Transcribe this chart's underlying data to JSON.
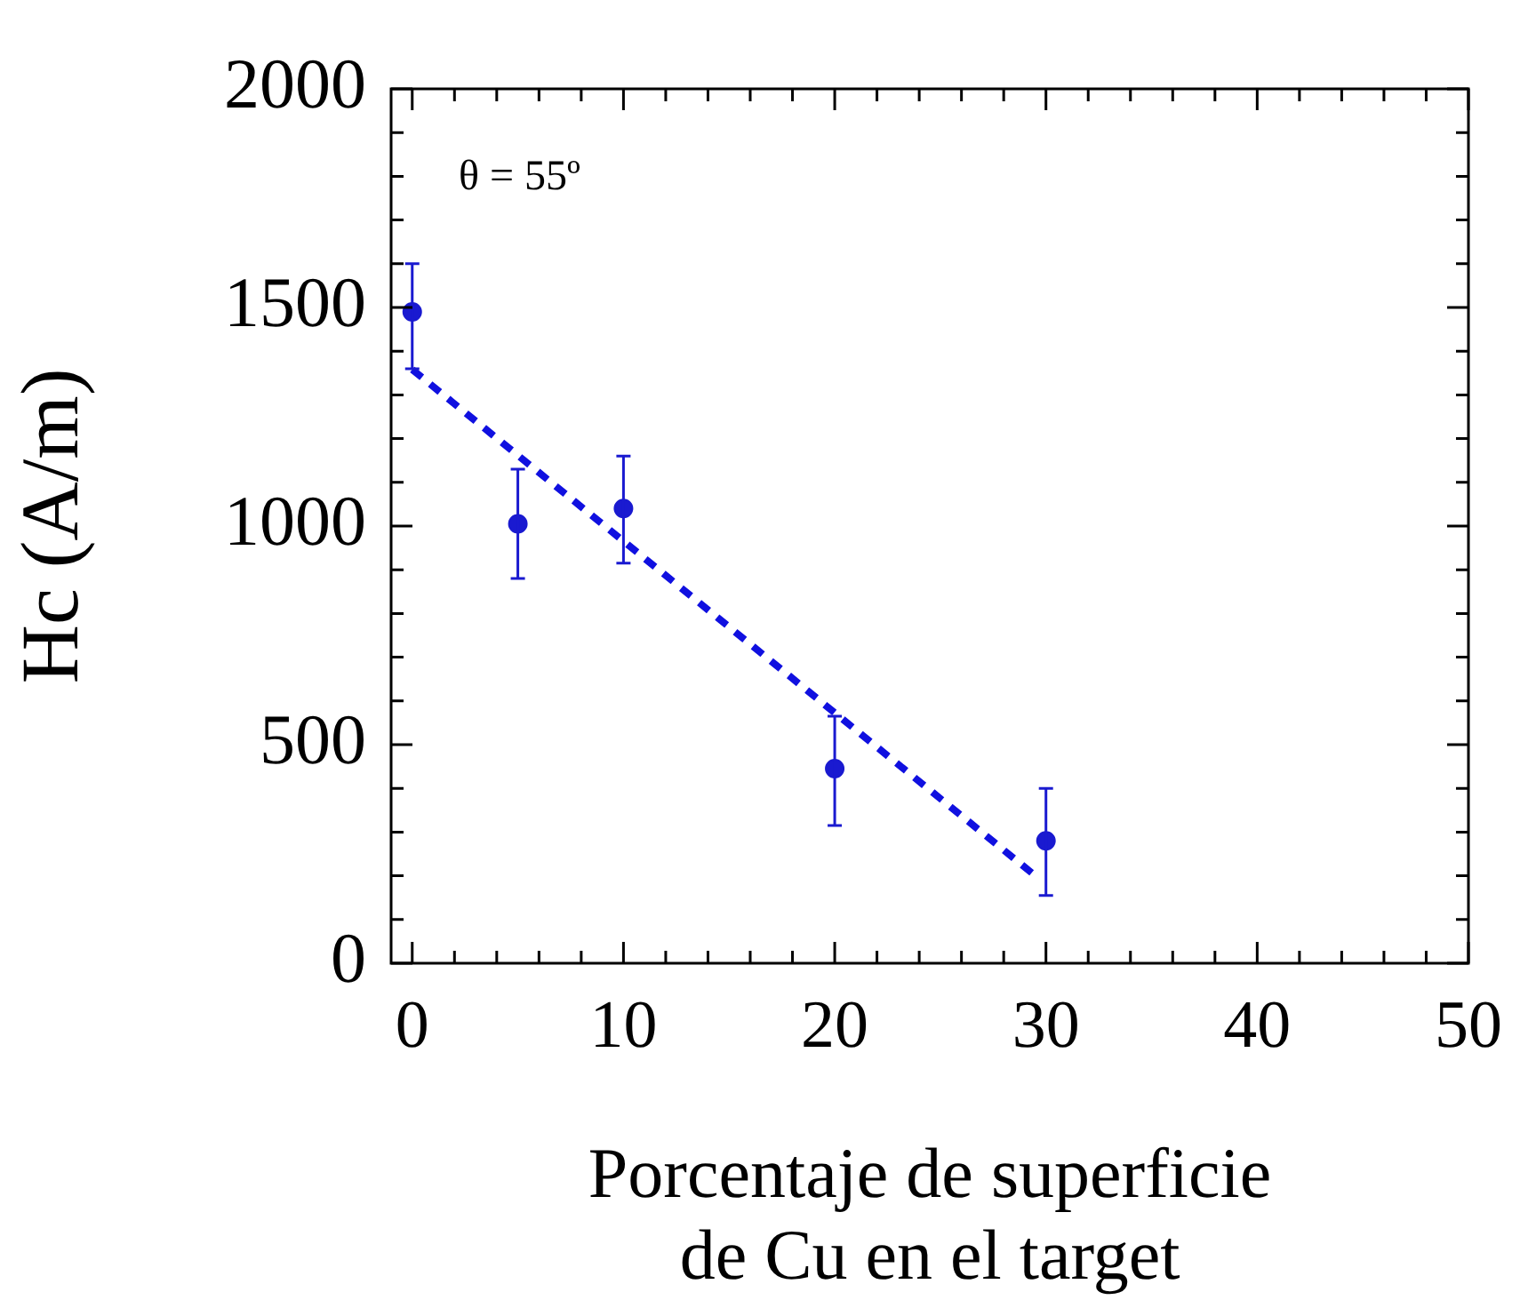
{
  "chart_data": {
    "type": "scatter",
    "xlabel": "Porcentaje de superficie\nde Cu en el target",
    "ylabel": "Hc (A/m)",
    "annotations": [
      "θ = 55º"
    ],
    "xlim": [
      -1,
      50
    ],
    "ylim": [
      0,
      2000
    ],
    "xticks": [
      0,
      {
        "value": 2,
        "label": null
      },
      {
        "value": 4,
        "label": null
      },
      {
        "value": 6,
        "label": null
      },
      {
        "value": 8,
        "label": null
      },
      10,
      {
        "value": 12,
        "label": null
      },
      {
        "value": 14,
        "label": null
      },
      {
        "value": 16,
        "label": null
      },
      {
        "value": 18,
        "label": null
      },
      20,
      {
        "value": 22,
        "label": null
      },
      {
        "value": 24,
        "label": null
      },
      {
        "value": 26,
        "label": null
      },
      {
        "value": 28,
        "label": null
      },
      30,
      {
        "value": 32,
        "label": null
      },
      {
        "value": 34,
        "label": null
      },
      {
        "value": 36,
        "label": null
      },
      {
        "value": 38,
        "label": null
      },
      40,
      {
        "value": 42,
        "label": null
      },
      {
        "value": 44,
        "label": null
      },
      {
        "value": 46,
        "label": null
      },
      {
        "value": 48,
        "label": null
      },
      50
    ],
    "yticks": [
      0,
      {
        "value": 100,
        "label": null
      },
      {
        "value": 200,
        "label": null
      },
      {
        "value": 300,
        "label": null
      },
      {
        "value": 400,
        "label": null
      },
      500,
      {
        "value": 600,
        "label": null
      },
      {
        "value": 700,
        "label": null
      },
      {
        "value": 800,
        "label": null
      },
      {
        "value": 900,
        "label": null
      },
      1000,
      {
        "value": 1100,
        "label": null
      },
      {
        "value": 1200,
        "label": null
      },
      {
        "value": 1300,
        "label": null
      },
      {
        "value": 1400,
        "label": null
      },
      1500,
      {
        "value": 1600,
        "label": null
      },
      {
        "value": 1700,
        "label": null
      },
      {
        "value": 1800,
        "label": null
      },
      {
        "value": 1900,
        "label": null
      },
      2000
    ],
    "grid": false,
    "legend": false,
    "marker": "circle",
    "series": [
      {
        "color": "#1a1ad0",
        "x": [
          0,
          5,
          10,
          20,
          30
        ],
        "values": [
          1490,
          1005,
          1040,
          445,
          280
        ],
        "errors": [
          [
            1360,
            1600
          ],
          [
            880,
            1130
          ],
          [
            915,
            1160
          ],
          [
            315,
            565
          ],
          [
            155,
            400
          ]
        ]
      },
      {
        "type": "line",
        "color": "#1010e0",
        "line_style": "dashed",
        "marker": "none",
        "x": [
          0,
          29.6
        ],
        "values": [
          1358,
          196
        ]
      }
    ]
  }
}
